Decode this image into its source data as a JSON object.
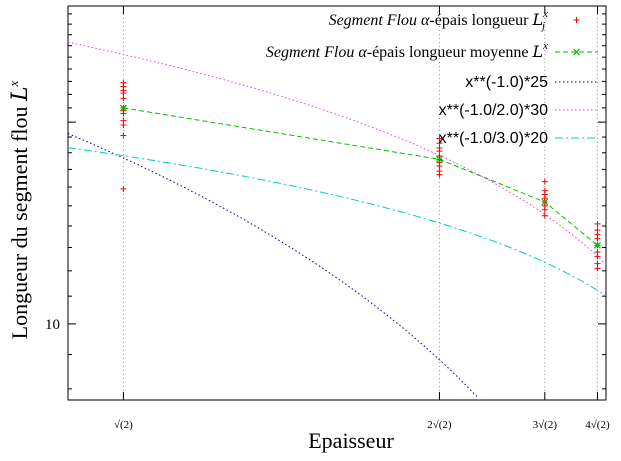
{
  "chart_data": {
    "type": "scatter",
    "title": "",
    "xlabel": "Epaisseur",
    "ylabel": "Longueur du segment flou",
    "ylabel_symbol": "L",
    "ylabel_sup": "x",
    "y_scale": "log",
    "x_scale": "reciprocal",
    "x_ticks": [
      {
        "value": 1.414,
        "label": "√(2)"
      },
      {
        "value": 2.828,
        "label": "2√(2)"
      },
      {
        "value": 4.243,
        "label": "3√(2)"
      },
      {
        "value": 5.657,
        "label": "4√(2)"
      }
    ],
    "y_ticks": [
      {
        "value": 10,
        "label": "10"
      }
    ],
    "xlim": [
      1.3,
      5.98
    ],
    "ylim": [
      7.7,
      29.8
    ],
    "grid": "vertical dotted lines at each tick",
    "legend_position": "top-right",
    "series": [
      {
        "name": "Segment Flou α-épais longueur",
        "name_text": "Segment Flou",
        "name_greek": "α",
        "name_rest": "-épais longueur ",
        "name_math": "L",
        "name_sub": "j",
        "name_sup": "x",
        "marker": "+",
        "color": "#ff0000",
        "points": [
          {
            "x": 1.414,
            "y": [
              15.9,
              19.1,
              19.8,
              20.1,
              20.6,
              20.8,
              21.0,
              21.7,
              22.1,
              22.3,
              22.6,
              22.9
            ]
          },
          {
            "x": 2.828,
            "y": [
              16.7,
              16.9,
              17.2,
              17.4,
              17.6,
              17.8,
              18.1,
              18.3,
              18.6,
              18.9
            ]
          },
          {
            "x": 4.243,
            "y": [
              14.5,
              14.8,
              15.0,
              15.2,
              15.4,
              15.6,
              15.8,
              16.3
            ]
          },
          {
            "x": 5.657,
            "y": [
              12.1,
              12.3,
              12.6,
              12.8,
              13.1,
              13.4,
              13.6,
              13.8,
              14.1
            ]
          }
        ]
      },
      {
        "name": "Segment Flou α-épais longueur moyenne",
        "name_text": "Segment Flou",
        "name_greek": "α",
        "name_rest": "-épais longueur moyenne ",
        "name_math": "L",
        "name_sup": "x",
        "marker": "x",
        "line": "dashed",
        "color": "#00c000",
        "x": [
          1.414,
          2.828,
          4.243,
          5.657
        ],
        "y": [
          21.0,
          17.6,
          15.2,
          13.1
        ]
      },
      {
        "name": "x**(-1.0)*25",
        "line": "dotted",
        "color": "#0000a0",
        "function": {
          "coef": 25,
          "exponent": -1.0
        }
      },
      {
        "name": "x**(-1.0/2.0)*30",
        "line": "dotted",
        "color": "#e040e0",
        "function": {
          "coef": 30,
          "exponent": -0.5
        }
      },
      {
        "name": "x**(-1.0/3.0)*20",
        "line": "dashdot",
        "color": "#00cccc",
        "function": {
          "coef": 20,
          "exponent": -0.33333
        }
      }
    ]
  }
}
